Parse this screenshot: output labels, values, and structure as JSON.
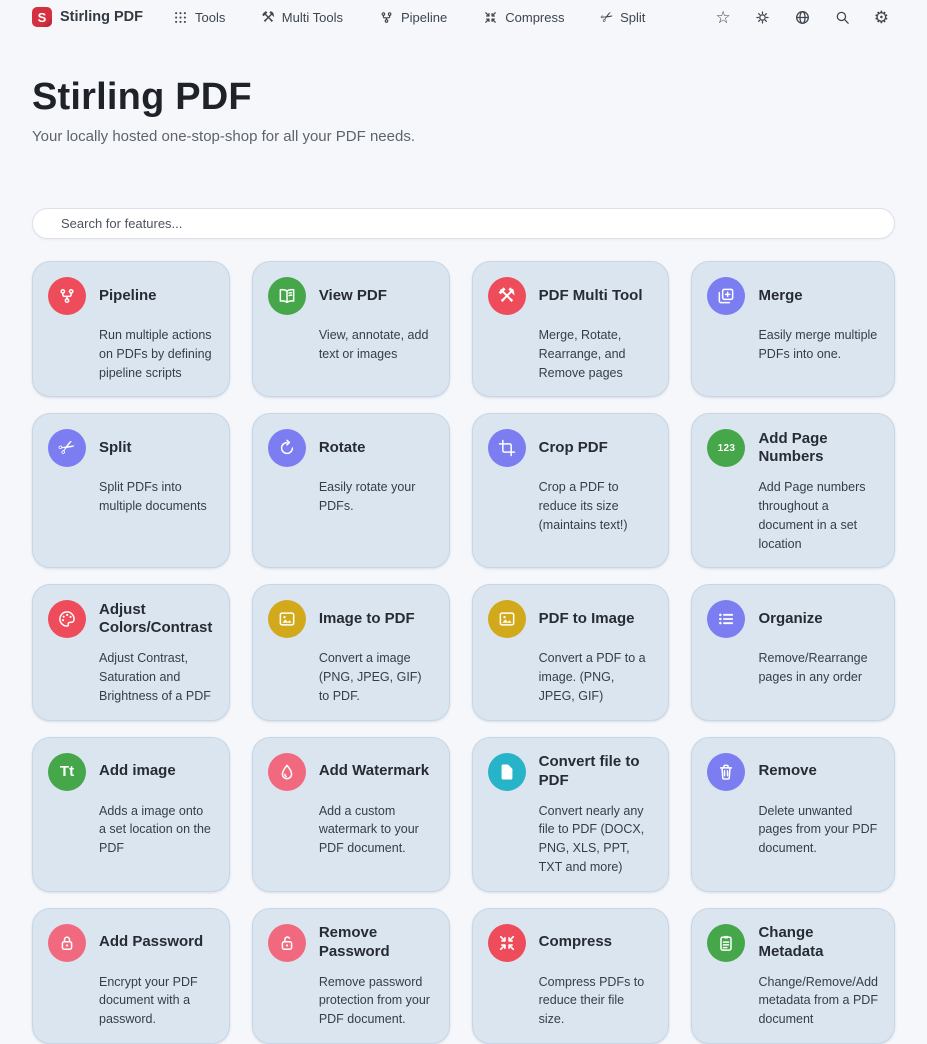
{
  "brand": {
    "name": "Stirling PDF",
    "logo_letter": "S",
    "logo_color": "#d5303f"
  },
  "navbar": {
    "links": [
      {
        "label": "Tools",
        "icon": "grid-dots"
      },
      {
        "label": "Multi Tools",
        "icon": "hammer-wrench"
      },
      {
        "label": "Pipeline",
        "icon": "pipeline"
      },
      {
        "label": "Compress",
        "icon": "compress"
      },
      {
        "label": "Split",
        "icon": "scissors"
      }
    ],
    "actions": [
      {
        "icon": "star"
      },
      {
        "icon": "sun"
      },
      {
        "icon": "globe"
      },
      {
        "icon": "search"
      },
      {
        "icon": "gear"
      }
    ]
  },
  "hero": {
    "title": "Stirling PDF",
    "subtitle": "Your locally hosted one-stop-shop for all your PDF needs."
  },
  "search": {
    "placeholder": "Search for features..."
  },
  "colors": {
    "red": "#ee4c5b",
    "pink": "#f0697f",
    "green": "#45a64a",
    "indigo": "#7b7df1",
    "gold": "#d3a91c",
    "cyan": "#27b4c8",
    "card_bg": "#dbe5f0"
  },
  "cards": [
    {
      "title": "Pipeline",
      "description": "Run multiple actions on PDFs by defining pipeline scripts",
      "icon": "pipeline",
      "color": "#ee4c5b"
    },
    {
      "title": "View PDF",
      "description": "View, annotate, add text or images",
      "icon": "book-open",
      "color": "#45a64a"
    },
    {
      "title": "PDF Multi Tool",
      "description": "Merge, Rotate, Rearrange, and Remove pages",
      "icon": "hammer-wrench",
      "color": "#ee4c5b"
    },
    {
      "title": "Merge",
      "description": "Easily merge multiple PDFs into one.",
      "icon": "add-photos",
      "color": "#7b7df1"
    },
    {
      "title": "Split",
      "description": "Split PDFs into multiple documents",
      "icon": "scissors",
      "color": "#7b7df1"
    },
    {
      "title": "Rotate",
      "description": "Easily rotate your PDFs.",
      "icon": "rotate",
      "color": "#7b7df1"
    },
    {
      "title": "Crop PDF",
      "description": "Crop a PDF to reduce its size (maintains text!)",
      "icon": "crop",
      "color": "#7b7df1"
    },
    {
      "title": "Add Page Numbers",
      "description": "Add Page numbers throughout a document in a set location",
      "icon": "numbers-123",
      "color": "#45a64a"
    },
    {
      "title": "Adjust Colors/Contrast",
      "description": "Adjust Contrast, Saturation and Brightness of a PDF",
      "icon": "palette",
      "color": "#ee4c5b"
    },
    {
      "title": "Image to PDF",
      "description": "Convert a image (PNG, JPEG, GIF) to PDF.",
      "icon": "image",
      "color": "#d3a91c"
    },
    {
      "title": "PDF to Image",
      "description": "Convert a PDF to a image. (PNG, JPEG, GIF)",
      "icon": "image",
      "color": "#d3a91c"
    },
    {
      "title": "Organize",
      "description": "Remove/Rearrange pages in any order",
      "icon": "list-bullets",
      "color": "#7b7df1"
    },
    {
      "title": "Add image",
      "description": "Adds a image onto a set location on the PDF",
      "icon": "text-Tt",
      "color": "#45a64a"
    },
    {
      "title": "Add Watermark",
      "description": "Add a custom watermark to your PDF document.",
      "icon": "droplet",
      "color": "#f0697f"
    },
    {
      "title": "Convert file to PDF",
      "description": "Convert nearly any file to PDF (DOCX, PNG, XLS, PPT, TXT and more)",
      "icon": "file",
      "color": "#27b4c8"
    },
    {
      "title": "Remove",
      "description": "Delete unwanted pages from your PDF document.",
      "icon": "trash",
      "color": "#7b7df1"
    },
    {
      "title": "Add Password",
      "description": "Encrypt your PDF document with a password.",
      "icon": "lock",
      "color": "#f0697f"
    },
    {
      "title": "Remove Password",
      "description": "Remove password protection from your PDF document.",
      "icon": "unlock",
      "color": "#f0697f"
    },
    {
      "title": "Compress",
      "description": "Compress PDFs to reduce their file size.",
      "icon": "compress",
      "color": "#ee4c5b"
    },
    {
      "title": "Change Metadata",
      "description": "Change/Remove/Add metadata from a PDF document",
      "icon": "clipboard",
      "color": "#45a64a"
    }
  ]
}
